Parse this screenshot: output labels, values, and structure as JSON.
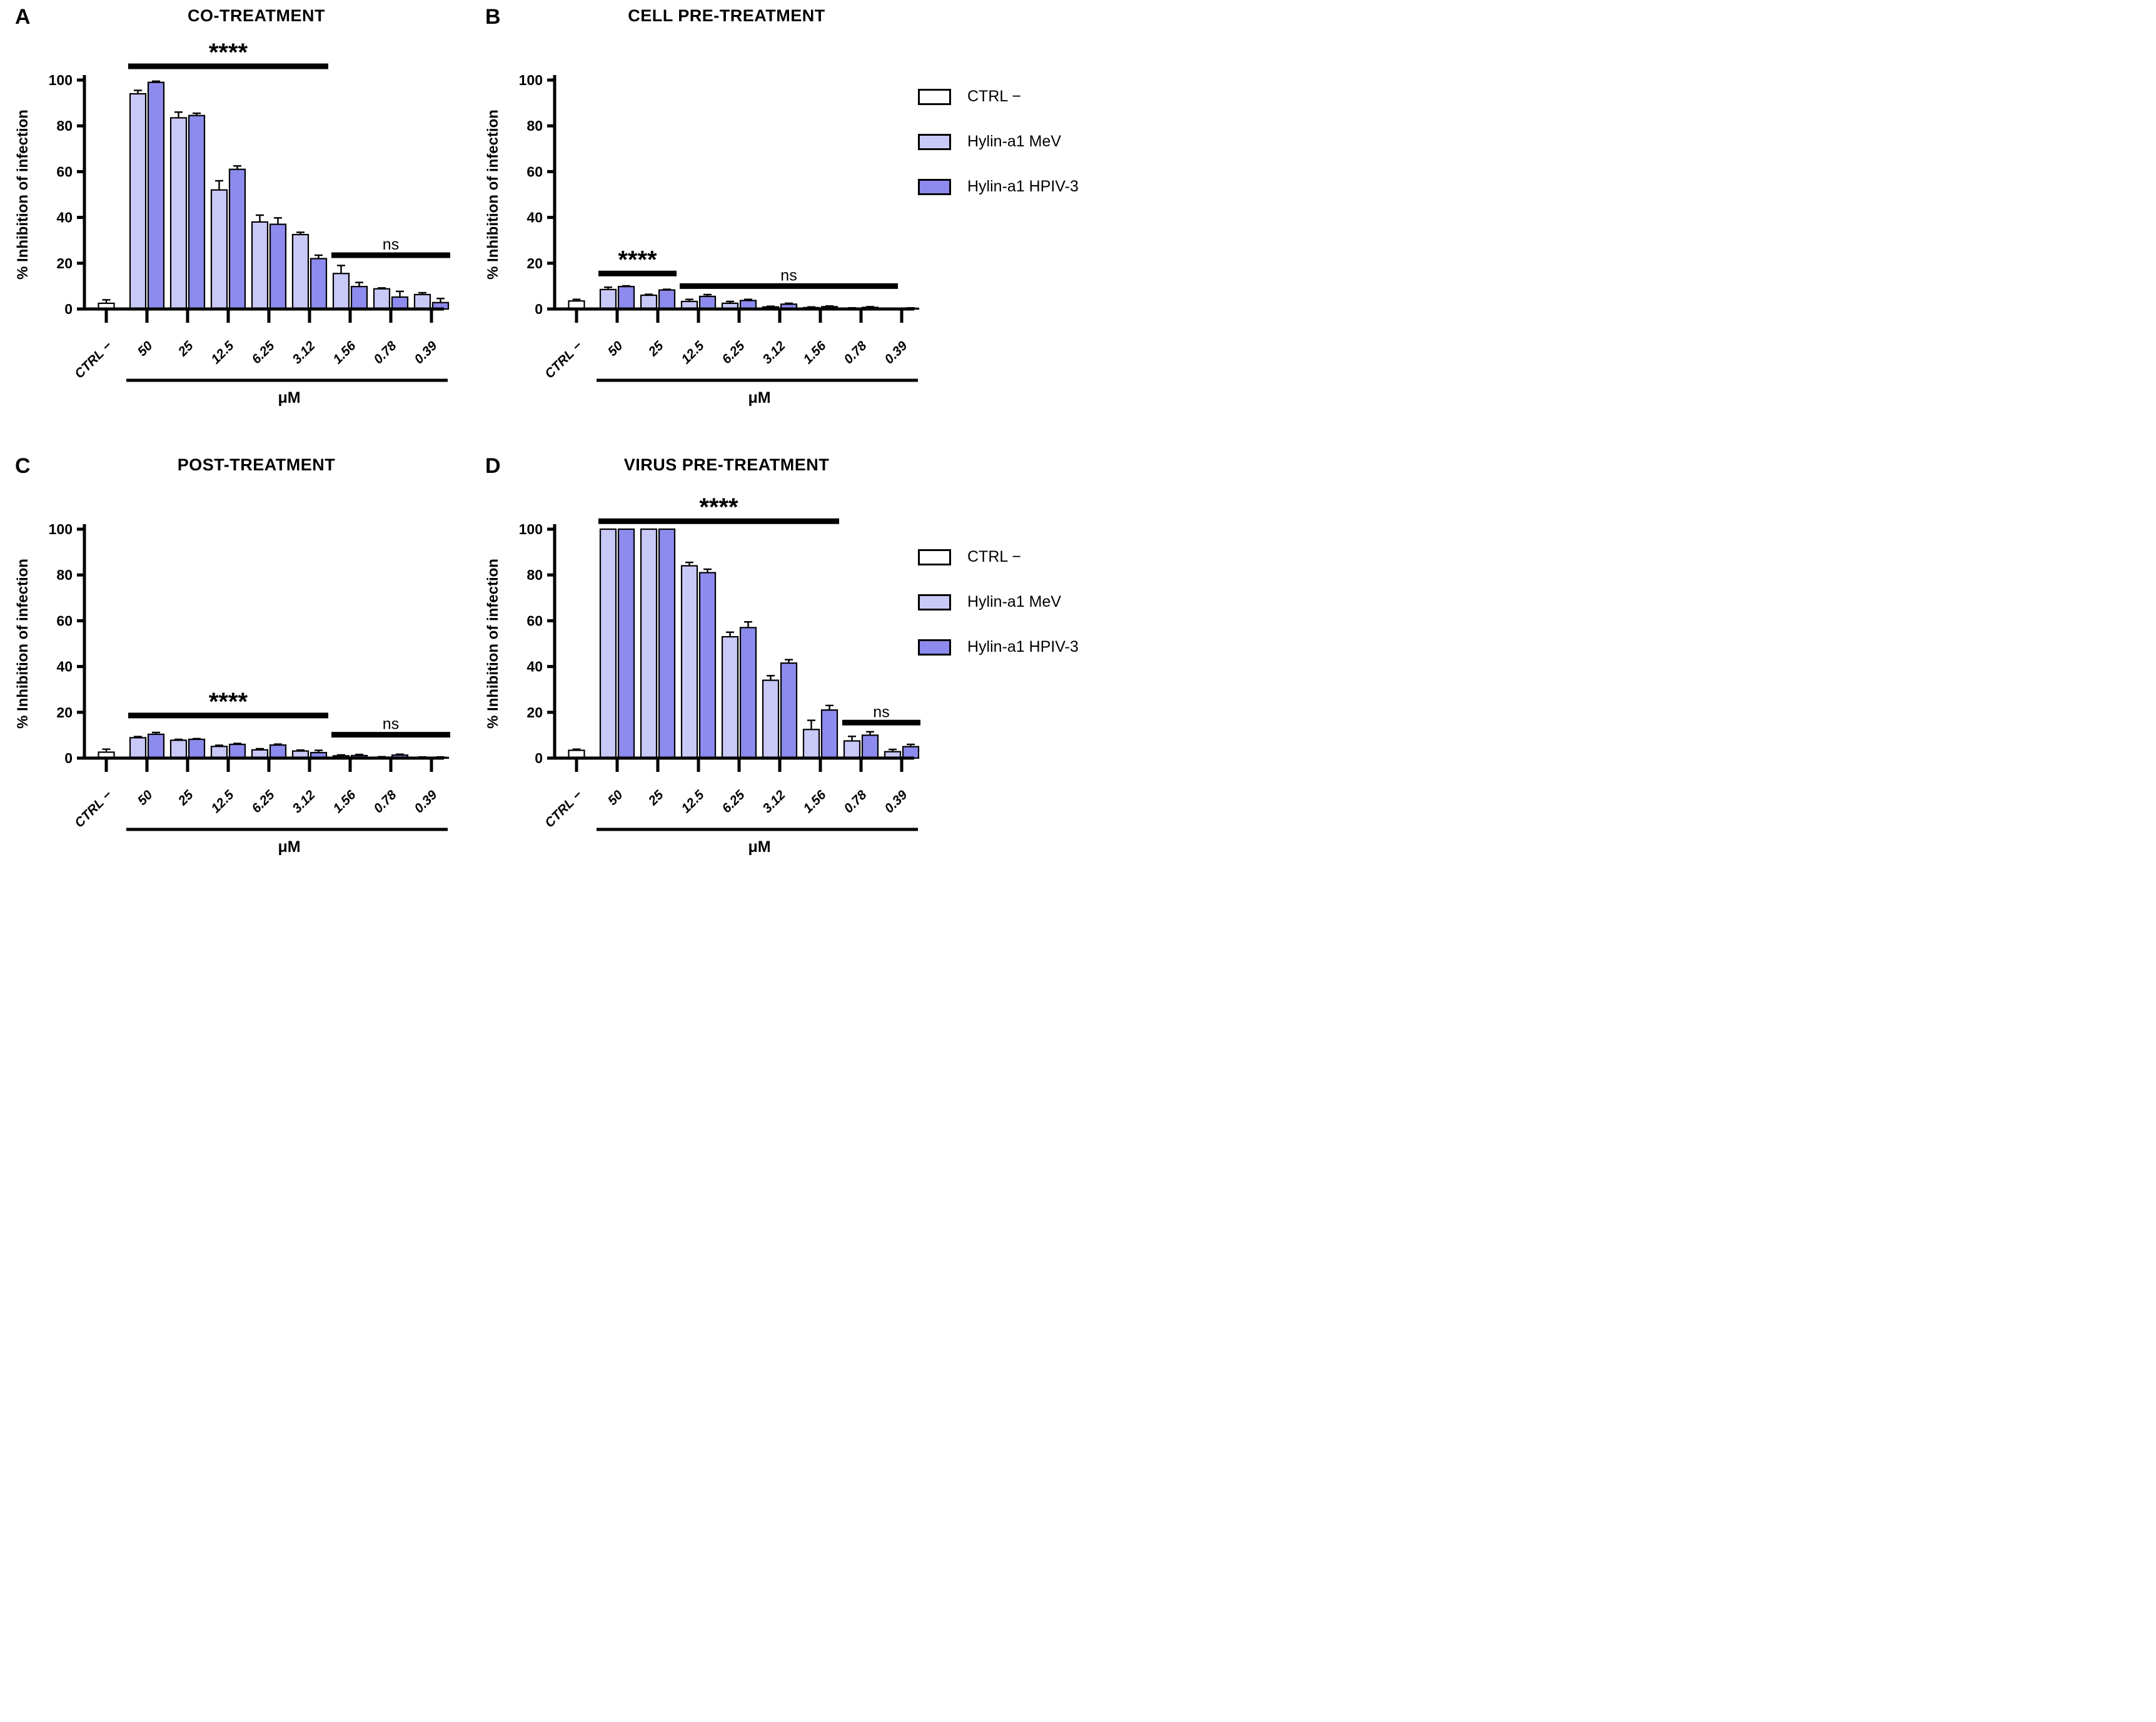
{
  "legend": {
    "entries": [
      {
        "label": "CTRL −",
        "color": "#ffffff"
      },
      {
        "label": "Hylin-a1 MeV",
        "color": "#c9c9f8"
      },
      {
        "label": "Hylin-a1 HPIV-3",
        "color": "#8d8bee"
      }
    ]
  },
  "chart_data": [
    {
      "type": "bar",
      "panel": "A",
      "title": "CO-TREATMENT",
      "ylabel": "% Inhibition of infection",
      "xlabel": "μM",
      "ylim": [
        0,
        100
      ],
      "yticks": [
        0,
        20,
        40,
        60,
        80,
        100
      ],
      "categories": [
        "CTRL −",
        "50",
        "25",
        "12.5",
        "6.25",
        "3.12",
        "1.56",
        "0.78",
        "0.39"
      ],
      "control": {
        "label": "CTRL −",
        "value": 2.5,
        "err": 1.5
      },
      "series": [
        {
          "name": "Hylin-a1 MeV",
          "color": "#c9c9f8",
          "values": [
            94,
            83.5,
            52,
            38,
            32.5,
            15.5,
            8.8,
            6.3
          ],
          "errors": [
            1.5,
            2.5,
            4,
            3,
            1,
            3.5,
            0.4,
            0.8
          ]
        },
        {
          "name": "Hylin-a1 HPIV-3",
          "color": "#8d8bee",
          "values": [
            99,
            84.5,
            61,
            37,
            22,
            9.8,
            5.2,
            2.8
          ],
          "errors": [
            0.5,
            1,
            1.5,
            2.8,
            1.5,
            1.8,
            2.5,
            1.8
          ]
        }
      ],
      "annotations": [
        {
          "label": "****",
          "from": 1,
          "to": 5,
          "y": 106
        },
        {
          "label": "ns",
          "from": 6,
          "to": 8,
          "y": 23.5
        }
      ]
    },
    {
      "type": "bar",
      "panel": "B",
      "title": "CELL PRE-TREATMENT",
      "ylabel": "% Inhibition of infection",
      "xlabel": "μM",
      "ylim": [
        0,
        100
      ],
      "yticks": [
        0,
        20,
        40,
        60,
        80,
        100
      ],
      "categories": [
        "CTRL −",
        "50",
        "25",
        "12.5",
        "6.25",
        "3.12",
        "1.56",
        "0.78",
        "0.39"
      ],
      "control": {
        "label": "CTRL −",
        "value": 3.5,
        "err": 0.7
      },
      "series": [
        {
          "name": "Hylin-a1 MeV",
          "color": "#c9c9f8",
          "values": [
            8.5,
            6,
            3.3,
            2.5,
            0.9,
            0.6,
            0.3,
            0.15
          ],
          "errors": [
            1,
            0.4,
            0.9,
            0.8,
            0.3,
            0.3,
            0.2,
            0.1
          ]
        },
        {
          "name": "Hylin-a1 HPIV-3",
          "color": "#8d8bee",
          "values": [
            9.8,
            8.3,
            5.5,
            3.7,
            2.1,
            1,
            0.7,
            0.3
          ],
          "errors": [
            0.3,
            0.3,
            0.8,
            0.5,
            0.4,
            0.3,
            0.3,
            0.2
          ]
        }
      ],
      "annotations": [
        {
          "label": "****",
          "from": 1,
          "to": 2,
          "y": 15.5
        },
        {
          "label": "ns",
          "from": 3,
          "to": 8,
          "y": 10,
          "trim_end": true
        }
      ]
    },
    {
      "type": "bar",
      "panel": "C",
      "title": "POST-TREATMENT",
      "ylabel": "% Inhibition of infection",
      "xlabel": "μM",
      "ylim": [
        0,
        100
      ],
      "yticks": [
        0,
        20,
        40,
        60,
        80,
        100
      ],
      "categories": [
        "CTRL −",
        "50",
        "25",
        "12.5",
        "6.25",
        "3.12",
        "1.56",
        "0.78",
        "0.39"
      ],
      "control": {
        "label": "CTRL −",
        "value": 2.6,
        "err": 1.3
      },
      "series": [
        {
          "name": "Hylin-a1 MeV",
          "color": "#c9c9f8",
          "values": [
            8.9,
            7.8,
            5.1,
            3.6,
            3.1,
            1,
            0.4,
            0.3
          ],
          "errors": [
            0.5,
            0.4,
            0.5,
            0.5,
            0.4,
            0.4,
            0.2,
            0.2
          ]
        },
        {
          "name": "Hylin-a1 HPIV-3",
          "color": "#8d8bee",
          "values": [
            10.4,
            8.2,
            6,
            5.7,
            2.4,
            1.1,
            1.3,
            0.3
          ],
          "errors": [
            0.8,
            0.3,
            0.4,
            0.4,
            1,
            0.5,
            0.4,
            0.2
          ]
        }
      ],
      "annotations": [
        {
          "label": "****",
          "from": 1,
          "to": 5,
          "y": 18.6
        },
        {
          "label": "ns",
          "from": 6,
          "to": 8,
          "y": 10.2
        }
      ]
    },
    {
      "type": "bar",
      "panel": "D",
      "title": "VIRUS PRE-TREATMENT",
      "ylabel": "% Inhibition of infection",
      "xlabel": "μM",
      "ylim": [
        0,
        100
      ],
      "yticks": [
        0,
        20,
        40,
        60,
        80,
        100
      ],
      "categories": [
        "CTRL −",
        "50",
        "25",
        "12.5",
        "6.25",
        "3.12",
        "1.56",
        "0.78",
        "0.39"
      ],
      "control": {
        "label": "CTRL −",
        "value": 3.4,
        "err": 0.5
      },
      "series": [
        {
          "name": "Hylin-a1 MeV",
          "color": "#c9c9f8",
          "values": [
            100,
            100,
            84,
            53,
            34,
            12.5,
            7.5,
            2.8
          ],
          "errors": [
            0,
            0,
            1.5,
            2,
            2,
            4,
            2,
            1
          ]
        },
        {
          "name": "Hylin-a1 HPIV-3",
          "color": "#8d8bee",
          "values": [
            100,
            100,
            81,
            57,
            41.5,
            21,
            10,
            5
          ],
          "errors": [
            0,
            0,
            1.5,
            2.5,
            1.5,
            2,
            1.5,
            1
          ]
        }
      ],
      "annotations": [
        {
          "label": "****",
          "from": 1,
          "to": 6,
          "y": 103.5
        },
        {
          "label": "ns",
          "from": 7,
          "to": 8,
          "y": 15.5
        }
      ]
    }
  ]
}
